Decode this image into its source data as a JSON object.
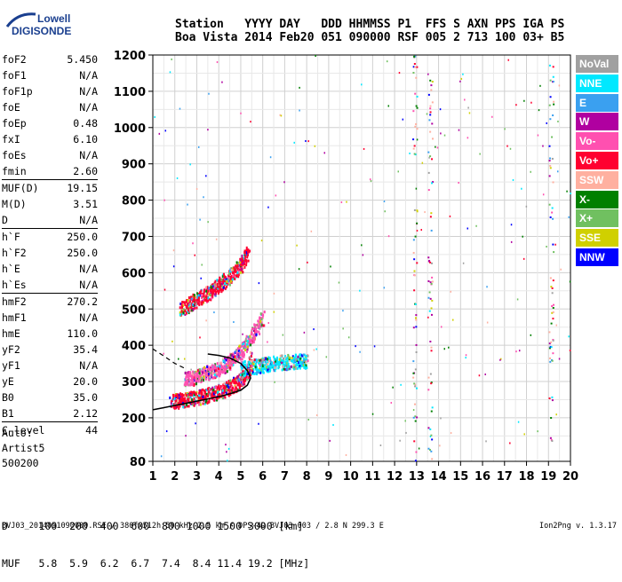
{
  "logo": {
    "line1": "Lowell",
    "line2": "DIGISONDE"
  },
  "header": {
    "line1": "Station   YYYY DAY   DDD HHMMSS P1  FFS S AXN PPS IGA PS",
    "line2": "Boa Vista 2014 Feb20 051 090000 RSF 005 2 713 100 03+ B5"
  },
  "params": [
    [
      {
        "name": "foF2",
        "value": "5.450"
      },
      {
        "name": "foF1",
        "value": "N/A"
      },
      {
        "name": "foF1p",
        "value": "N/A"
      },
      {
        "name": "foE",
        "value": "N/A"
      },
      {
        "name": "foEp",
        "value": "0.48"
      },
      {
        "name": "fxI",
        "value": "6.10"
      },
      {
        "name": "foEs",
        "value": "N/A"
      },
      {
        "name": "fmin",
        "value": "2.60"
      }
    ],
    [
      {
        "name": "MUF(D)",
        "value": "19.15"
      },
      {
        "name": "M(D)",
        "value": "3.51"
      },
      {
        "name": "D",
        "value": "N/A"
      }
    ],
    [
      {
        "name": "h`F",
        "value": "250.0"
      },
      {
        "name": "h`F2",
        "value": "250.0"
      },
      {
        "name": "h`E",
        "value": "N/A"
      },
      {
        "name": "h`Es",
        "value": "N/A"
      }
    ],
    [
      {
        "name": "hmF2",
        "value": "270.2"
      },
      {
        "name": "hmF1",
        "value": "N/A"
      },
      {
        "name": "hmE",
        "value": "110.0"
      },
      {
        "name": "yF2",
        "value": "35.4"
      },
      {
        "name": "yF1",
        "value": "N/A"
      },
      {
        "name": "yE",
        "value": "20.0"
      },
      {
        "name": "B0",
        "value": "35.0"
      },
      {
        "name": "B1",
        "value": "2.12"
      }
    ],
    [
      {
        "name": "C-level",
        "value": "44"
      }
    ]
  ],
  "auto": {
    "line1": "Auto:",
    "line2": "Artist5",
    "line3": "500200"
  },
  "muf_table": {
    "line1": "D     100  200  400  600  800 1000 1500 3000 [km]",
    "line2": "MUF   5.8  5.9  6.2  6.7  7.4  8.4 11.4 19.2 [MHz]"
  },
  "footer": {
    "left": "BVJ03_2014051090000.RSF / 380fx512h 50 kHz 2.5 km / DPS-4D BVJ03 003 / 2.8 N 299.3 E",
    "right": "Ion2Png v. 1.3.17"
  },
  "legend": [
    {
      "label": "NoVal",
      "color": "#a0a0a0"
    },
    {
      "label": "NNE",
      "color": "#00e8ff"
    },
    {
      "label": "E",
      "color": "#3aa0f0"
    },
    {
      "label": "W",
      "color": "#b000a0"
    },
    {
      "label": "Vo-",
      "color": "#ff50b0"
    },
    {
      "label": "Vo+",
      "color": "#ff0030"
    },
    {
      "label": "SSW",
      "color": "#ffb0a0"
    },
    {
      "label": "X-",
      "color": "#008000"
    },
    {
      "label": "X+",
      "color": "#70c060"
    },
    {
      "label": "SSE",
      "color": "#d0d000"
    },
    {
      "label": "NNW",
      "color": "#0000ff"
    }
  ],
  "chart_data": {
    "type": "scatter",
    "xlim": [
      1,
      20
    ],
    "ylim": [
      80,
      1200
    ],
    "x_ticks": [
      1,
      2,
      3,
      4,
      5,
      6,
      7,
      8,
      9,
      10,
      11,
      12,
      13,
      14,
      15,
      16,
      17,
      18,
      19,
      20
    ],
    "y_ticks": [
      80,
      200,
      300,
      400,
      500,
      600,
      700,
      800,
      900,
      1000,
      1100,
      1200
    ],
    "grid": true,
    "traces": [
      {
        "name": "o-trace F2",
        "color": "#ff0030",
        "points": [
          [
            1.8,
            240
          ],
          [
            2.2,
            242
          ],
          [
            2.6,
            246
          ],
          [
            3.0,
            250
          ],
          [
            3.4,
            256
          ],
          [
            3.8,
            262
          ],
          [
            4.2,
            270
          ],
          [
            4.6,
            282
          ],
          [
            5.0,
            298
          ],
          [
            5.3,
            320
          ],
          [
            5.45,
            360
          ]
        ]
      },
      {
        "name": "o-trace 2nd hop",
        "color": "#ff0030",
        "points": [
          [
            2.2,
            495
          ],
          [
            2.6,
            505
          ],
          [
            3.0,
            520
          ],
          [
            3.4,
            535
          ],
          [
            3.8,
            550
          ],
          [
            4.2,
            570
          ],
          [
            4.6,
            590
          ],
          [
            5.0,
            615
          ],
          [
            5.3,
            650
          ]
        ]
      },
      {
        "name": "x-trace",
        "color": "#ff50b0",
        "points": [
          [
            2.4,
            300
          ],
          [
            2.8,
            305
          ],
          [
            3.2,
            312
          ],
          [
            3.6,
            320
          ],
          [
            4.0,
            330
          ],
          [
            4.4,
            345
          ],
          [
            4.8,
            365
          ],
          [
            5.2,
            395
          ],
          [
            5.6,
            430
          ],
          [
            6.0,
            470
          ]
        ]
      },
      {
        "name": "F2 spread",
        "color": "#00e8ff",
        "points": [
          [
            5.0,
            330
          ],
          [
            5.5,
            335
          ],
          [
            6.0,
            340
          ],
          [
            6.5,
            345
          ],
          [
            7.0,
            348
          ],
          [
            7.5,
            350
          ],
          [
            8.0,
            352
          ]
        ]
      }
    ],
    "profile_curve": [
      [
        1.0,
        222
      ],
      [
        1.5,
        228
      ],
      [
        2.0,
        234
      ],
      [
        2.5,
        240
      ],
      [
        3.0,
        246
      ],
      [
        3.5,
        252
      ],
      [
        4.0,
        258
      ],
      [
        4.5,
        266
      ],
      [
        5.0,
        276
      ],
      [
        5.3,
        290
      ],
      [
        5.45,
        310
      ]
    ],
    "profile_upper": [
      [
        5.45,
        310
      ],
      [
        5.3,
        330
      ],
      [
        5.0,
        350
      ],
      [
        4.5,
        365
      ],
      [
        4.0,
        372
      ],
      [
        3.5,
        376
      ]
    ],
    "muf_dashed": [
      [
        1.0,
        390
      ],
      [
        1.5,
        370
      ],
      [
        2.0,
        350
      ],
      [
        2.5,
        335
      ]
    ]
  }
}
